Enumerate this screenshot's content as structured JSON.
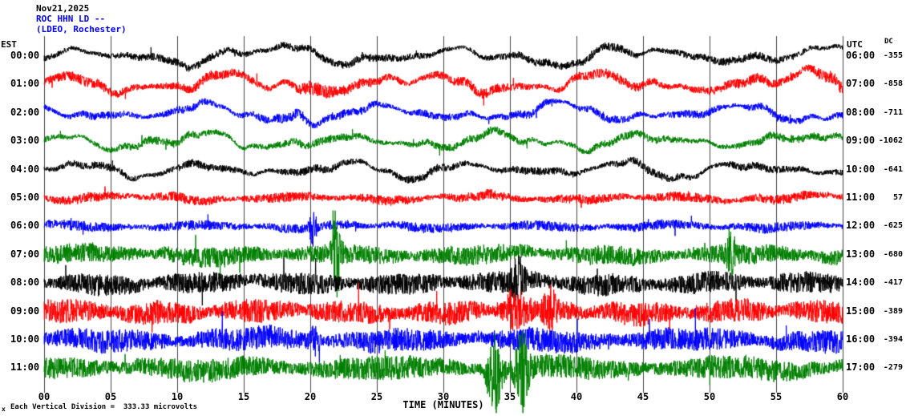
{
  "title": {
    "date": "Nov21,2025",
    "station": "ROC HHN LD --",
    "location": "(LDEO, Rochester)"
  },
  "axes": {
    "left_header": "EST",
    "right_header": "UTC",
    "dc_header": "DC",
    "x_label": "TIME (MINUTES)",
    "x_ticks": [
      "00",
      "05",
      "10",
      "15",
      "20",
      "25",
      "30",
      "35",
      "40",
      "45",
      "50",
      "55",
      "60"
    ],
    "footnote": "Each Vertical Division =  333.33 microvolts",
    "corner_mark": "x"
  },
  "colors": {
    "black": "#000000",
    "red": "#ff0000",
    "blue": "#0000ff",
    "green": "#008000",
    "grid": "#444444",
    "title_accent": "#0000ff"
  },
  "chart_data": {
    "type": "line",
    "title": "Helicorder seismogram ROC HHN LD -- (LDEO, Rochester), Nov21,2025",
    "xlabel": "TIME (MINUTES)",
    "x_range_minutes": [
      0,
      60
    ],
    "x_tick_interval_minutes": 5,
    "left_axis": "EST trace start hour",
    "right_axis": "UTC trace start hour",
    "vertical_division_microvolts": 333.33,
    "description": "Twelve 60-minute traces of continuous seismic background noise; exact waveform is stochastic and is recreated procedurally from the per-row amplitude hints below.",
    "rows": [
      {
        "est": "00:00",
        "utc": "06:00",
        "dc": "-355",
        "color": "black",
        "amp_lf": 13,
        "amp_hf": 4,
        "seed": 11
      },
      {
        "est": "01:00",
        "utc": "07:00",
        "dc": "-858",
        "color": "red",
        "amp_lf": 14,
        "amp_hf": 5,
        "seed": 22
      },
      {
        "est": "02:00",
        "utc": "08:00",
        "dc": "-711",
        "color": "blue",
        "amp_lf": 13,
        "amp_hf": 4,
        "seed": 33
      },
      {
        "est": "03:00",
        "utc": "09:00",
        "dc": "-1062",
        "color": "green",
        "amp_lf": 12,
        "amp_hf": 4,
        "seed": 44
      },
      {
        "est": "04:00",
        "utc": "10:00",
        "dc": "-641",
        "color": "black",
        "amp_lf": 11,
        "amp_hf": 4,
        "seed": 55
      },
      {
        "est": "05:00",
        "utc": "11:00",
        "dc": "57",
        "color": "red",
        "amp_lf": 4,
        "amp_hf": 5,
        "seed": 66
      },
      {
        "est": "06:00",
        "utc": "12:00",
        "dc": "-625",
        "color": "blue",
        "amp_lf": 3,
        "amp_hf": 5,
        "seed": 77
      },
      {
        "est": "07:00",
        "utc": "13:00",
        "dc": "-680",
        "color": "green",
        "amp_lf": 4,
        "amp_hf": 10,
        "seed": 88
      },
      {
        "est": "08:00",
        "utc": "14:00",
        "dc": "-417",
        "color": "black",
        "amp_lf": 4,
        "amp_hf": 11,
        "seed": 99
      },
      {
        "est": "09:00",
        "utc": "15:00",
        "dc": "-389",
        "color": "red",
        "amp_lf": 4,
        "amp_hf": 12,
        "seed": 110
      },
      {
        "est": "10:00",
        "utc": "16:00",
        "dc": "-394",
        "color": "blue",
        "amp_lf": 4,
        "amp_hf": 12,
        "seed": 121
      },
      {
        "est": "11:00",
        "utc": "17:00",
        "dc": "-279",
        "color": "green",
        "amp_lf": 4,
        "amp_hf": 12,
        "seed": 132
      }
    ],
    "events": [
      {
        "row": 0,
        "minute": 18.0,
        "scale": 1.6,
        "width": 1.4
      },
      {
        "row": 0,
        "minute": 43.5,
        "scale": 1.6,
        "width": 1.4
      },
      {
        "row": 1,
        "minute": 20.0,
        "scale": 1.8,
        "width": 1.5
      },
      {
        "row": 1,
        "minute": 58.5,
        "scale": 2.0,
        "width": 1.5
      },
      {
        "row": 2,
        "minute": 19.5,
        "scale": 1.8,
        "width": 1.6
      },
      {
        "row": 6,
        "minute": 20.2,
        "scale": 4.0,
        "width": 0.25
      },
      {
        "row": 7,
        "minute": 22.0,
        "scale": 5.0,
        "width": 0.3
      },
      {
        "row": 7,
        "minute": 51.6,
        "scale": 3.2,
        "width": 0.3
      },
      {
        "row": 8,
        "minute": 35.6,
        "scale": 2.2,
        "width": 0.5
      },
      {
        "row": 9,
        "minute": 35.3,
        "scale": 2.6,
        "width": 0.7
      },
      {
        "row": 9,
        "minute": 38.0,
        "scale": 2.2,
        "width": 0.4
      },
      {
        "row": 10,
        "minute": 20.3,
        "scale": 2.6,
        "width": 0.35
      },
      {
        "row": 11,
        "minute": 33.8,
        "scale": 5.5,
        "width": 0.5
      },
      {
        "row": 11,
        "minute": 35.9,
        "scale": 4.5,
        "width": 0.45
      }
    ]
  }
}
